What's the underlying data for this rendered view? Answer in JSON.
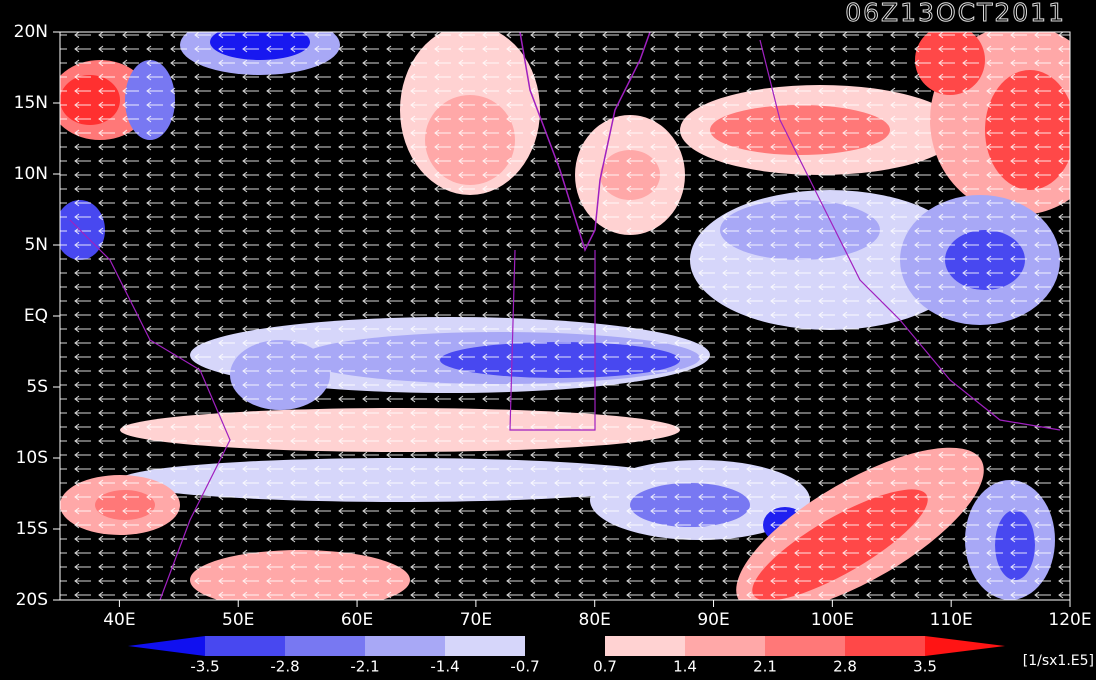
{
  "title": "06Z13OCT2011",
  "lat_labels": [
    "20N",
    "15N",
    "10N",
    "5N",
    "EQ",
    "5S",
    "10S",
    "15S",
    "20S"
  ],
  "lon_labels": [
    "40E",
    "50E",
    "60E",
    "70E",
    "80E",
    "90E",
    "100E",
    "110E",
    "120E"
  ],
  "colorbar": {
    "levels": [
      -3.5,
      -2.8,
      -2.1,
      -1.4,
      -0.7,
      0.7,
      1.4,
      2.1,
      2.8,
      3.5
    ],
    "colors": [
      "#1010f0",
      "#4848f0",
      "#7878f2",
      "#a8a8f6",
      "#d6d6fa",
      "#000000",
      "#ffd2d2",
      "#ffa8a8",
      "#ff7878",
      "#ff4848",
      "#ff1414"
    ],
    "unit": "[1/sx1.E5]"
  }
}
